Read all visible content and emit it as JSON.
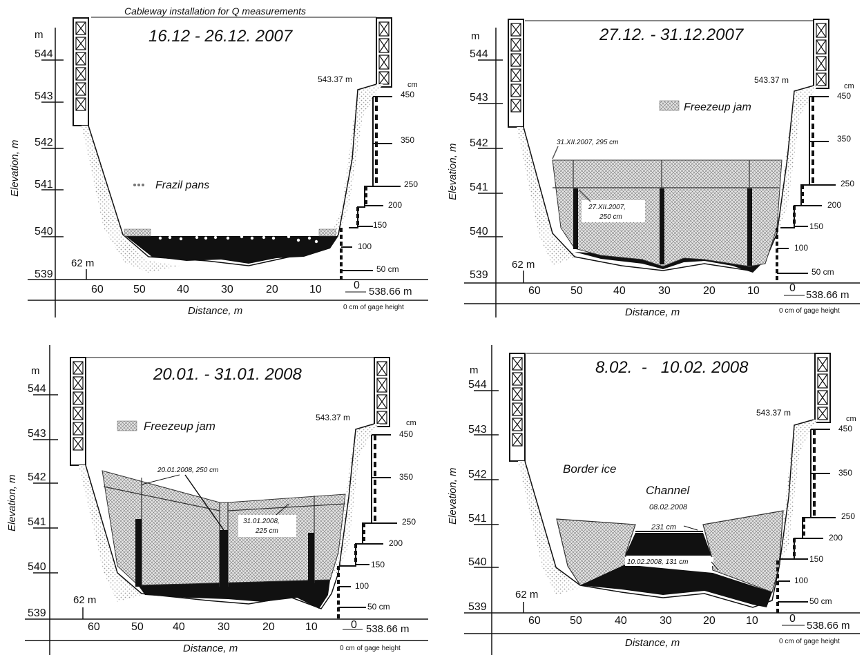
{
  "figure_caption": "Cableway installation for  Q measurements",
  "panels": [
    {
      "title": "16.12 - 26.12. 2007",
      "yaxis_label": "Elevation, m",
      "yaxis_unit": "m",
      "xaxis_label": "Distance, m",
      "elev_ticks": [
        "544",
        "543",
        "542",
        "541",
        "540",
        "539"
      ],
      "dist_ticks": [
        "60",
        "50",
        "40",
        "30",
        "20",
        "10",
        "0"
      ],
      "marker_62": "62 m",
      "bank_label": "543.37 m",
      "gage_unit": "cm",
      "gage_ticks": [
        "450",
        "350",
        "250",
        "200",
        "150",
        "100",
        "50 cm"
      ],
      "gage_zero_label": "538.66 m",
      "gage_zero_note": "0 cm of gage height",
      "legend": "Frazil pans",
      "annotations": []
    },
    {
      "title": "27.12. - 31.12.2007",
      "yaxis_label": "Elevation, m",
      "yaxis_unit": "m",
      "xaxis_label": "Distance, m",
      "elev_ticks": [
        "544",
        "543",
        "542",
        "541",
        "540",
        "539"
      ],
      "dist_ticks": [
        "60",
        "50",
        "40",
        "30",
        "20",
        "10",
        "0"
      ],
      "marker_62": "62 m",
      "bank_label": "543.37 m",
      "gage_unit": "cm",
      "gage_ticks": [
        "450",
        "350",
        "250",
        "200",
        "150",
        "100",
        "50 cm"
      ],
      "gage_zero_label": "538.66 m",
      "gage_zero_note": "0 cm of gage height",
      "legend": "Freezeup jam",
      "annotations": [
        "31.XII.2007, 295 cm",
        "27.XII.2007,",
        "250 cm"
      ]
    },
    {
      "title": "20.01. - 31.01. 2008",
      "yaxis_label": "Elevation, m",
      "yaxis_unit": "m",
      "xaxis_label": "Distance, m",
      "elev_ticks": [
        "544",
        "543",
        "542",
        "541",
        "540",
        "539"
      ],
      "dist_ticks": [
        "60",
        "50",
        "40",
        "30",
        "20",
        "10",
        "0"
      ],
      "marker_62": "62 m",
      "bank_label": "543.37 m",
      "gage_unit": "cm",
      "gage_ticks": [
        "450",
        "350",
        "250",
        "200",
        "150",
        "100",
        "50 cm"
      ],
      "gage_zero_label": "538.66 m",
      "gage_zero_note": "0 cm of gage height",
      "legend": "Freezeup  jam",
      "annotations": [
        "20.01.2008, 250 cm",
        "31.01.2008,",
        "225 cm"
      ]
    },
    {
      "title": "8.02.  -   10.02. 2008",
      "yaxis_label": "Elevation, m",
      "yaxis_unit": "m",
      "xaxis_label": "Distance, m",
      "elev_ticks": [
        "544",
        "543",
        "542",
        "541",
        "540",
        "539"
      ],
      "dist_ticks": [
        "60",
        "50",
        "40",
        "30",
        "20",
        "10",
        "0"
      ],
      "marker_62": "62 m",
      "bank_label": "543.37 m",
      "gage_unit": "cm",
      "gage_ticks": [
        "450",
        "350",
        "250",
        "200",
        "150",
        "100",
        "50 cm"
      ],
      "gage_zero_label": "538.66 m",
      "gage_zero_note": "0 cm of gage height",
      "legend": "Border ice",
      "annotations": [
        "Channel",
        "08.02.2008",
        "231 cm",
        "10.02.2008, 131 cm"
      ]
    }
  ],
  "colors": {
    "ink": "#111111",
    "bank_stipple": "#b5b5b5",
    "jam_fill": "#d9d9d9",
    "water": "#111111"
  }
}
